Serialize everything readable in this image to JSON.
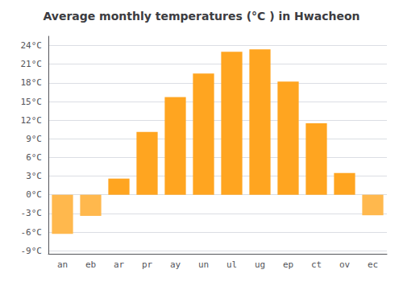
{
  "chart_data": {
    "type": "bar",
    "title": "Average monthly temperatures (°C ) in Hwacheon",
    "categories": [
      "an",
      "eb",
      "ar",
      "pr",
      "ay",
      "un",
      "ul",
      "ug",
      "ep",
      "ct",
      "ov",
      "ec"
    ],
    "values": [
      -6.3,
      -3.4,
      2.6,
      10.1,
      15.7,
      19.5,
      23.0,
      23.4,
      18.2,
      11.5,
      3.5,
      -3.3
    ],
    "colors": [
      "#FFB84D",
      "#FFB84D",
      "#FFA520",
      "#FFA520",
      "#FFA520",
      "#FFA520",
      "#FFA520",
      "#FFA520",
      "#FFA520",
      "#FFA520",
      "#FFA520",
      "#FFB84D"
    ],
    "ylim": [
      -9.5,
      25.5
    ],
    "yticks": [
      {
        "value": -9,
        "label": "-9°C"
      },
      {
        "value": -6,
        "label": "-6°C"
      },
      {
        "value": -3,
        "label": "-3°C"
      },
      {
        "value": 0,
        "label": "0°C"
      },
      {
        "value": 3,
        "label": "3°C"
      },
      {
        "value": 6,
        "label": "6°C"
      },
      {
        "value": 9,
        "label": "9°C"
      },
      {
        "value": 12,
        "label": "12°C"
      },
      {
        "value": 15,
        "label": "15°C"
      },
      {
        "value": 18,
        "label": "18°C"
      },
      {
        "value": 21,
        "label": "21°C"
      },
      {
        "value": 24,
        "label": "24°C"
      }
    ],
    "grid": true
  }
}
